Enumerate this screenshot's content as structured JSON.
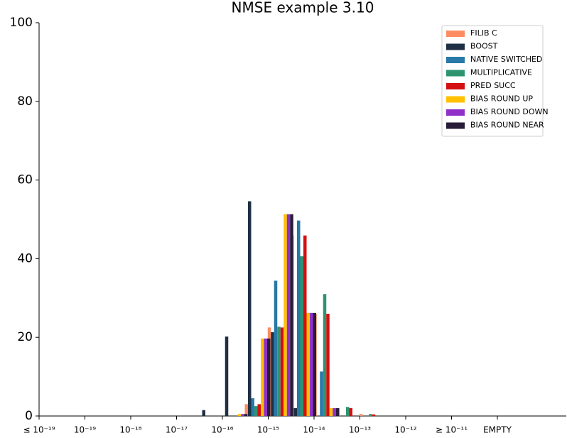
{
  "chart_data": {
    "type": "bar",
    "title": "NMSE example 3.10",
    "categories": [
      "≤ 10⁻¹⁹",
      null,
      "10⁻¹⁹",
      null,
      "10⁻¹⁸",
      null,
      "10⁻¹⁷",
      null,
      "10⁻¹⁶",
      null,
      "10⁻¹⁵",
      null,
      "10⁻¹⁴",
      null,
      "10⁻¹³",
      null,
      "10⁻¹²",
      null,
      "≥ 10⁻¹¹",
      null,
      "EMPTY"
    ],
    "series": [
      {
        "name": "FILIB C",
        "color": "#fc8d62",
        "values": [
          0,
          0,
          0,
          0,
          0,
          0,
          0,
          0,
          0,
          3.0,
          22.5,
          45.9,
          26.0,
          2.0,
          0.5,
          0,
          0,
          0,
          0,
          0,
          0
        ]
      },
      {
        "name": "BOOST",
        "color": "#1f3044",
        "values": [
          0,
          0,
          0,
          0,
          0,
          0,
          0,
          1.5,
          20.2,
          54.6,
          21.3,
          2.0,
          0,
          0,
          0,
          0,
          0,
          0,
          0,
          0,
          0
        ]
      },
      {
        "name": "NATIVE SWITCHED",
        "color": "#2878a8",
        "values": [
          0,
          0,
          0,
          0,
          0,
          0,
          0,
          0,
          0,
          4.5,
          34.4,
          49.7,
          11.3,
          0,
          0,
          0,
          0,
          0,
          0,
          0,
          0
        ]
      },
      {
        "name": "MULTIPLICATIVE",
        "color": "#2e9470",
        "values": [
          0,
          0,
          0,
          0,
          0,
          0,
          0,
          0,
          0,
          2.5,
          22.7,
          40.6,
          31.0,
          2.3,
          0.5,
          0,
          0,
          0,
          0,
          0,
          0
        ]
      },
      {
        "name": "PRED SUCC",
        "color": "#d40f0f",
        "values": [
          0,
          0,
          0,
          0,
          0,
          0,
          0,
          0,
          0,
          3.0,
          22.5,
          45.9,
          26.0,
          2.0,
          0.4,
          0,
          0,
          0,
          0,
          0,
          0
        ]
      },
      {
        "name": "BIAS ROUND UP",
        "color": "#ffc000",
        "values": [
          0,
          0,
          0,
          0,
          0,
          0,
          0,
          0,
          0.5,
          19.7,
          51.3,
          26.2,
          2.0,
          0,
          0,
          0,
          0,
          0,
          0,
          0,
          0
        ]
      },
      {
        "name": "BIAS ROUND DOWN",
        "color": "#9030c8",
        "values": [
          0,
          0,
          0,
          0,
          0,
          0,
          0,
          0,
          0.5,
          19.7,
          51.3,
          26.2,
          2.0,
          0,
          0,
          0,
          0,
          0,
          0,
          0,
          0
        ]
      },
      {
        "name": "BIAS ROUND NEAR",
        "color": "#281c3a",
        "values": [
          0,
          0,
          0,
          0,
          0,
          0,
          0,
          0,
          0.5,
          19.7,
          51.3,
          26.2,
          2.0,
          0,
          0,
          0,
          0,
          0,
          0,
          0,
          0
        ]
      }
    ],
    "ylim": [
      0,
      100
    ],
    "yticks": [
      0,
      20,
      40,
      60,
      80,
      100
    ],
    "legend": "upper-right"
  }
}
